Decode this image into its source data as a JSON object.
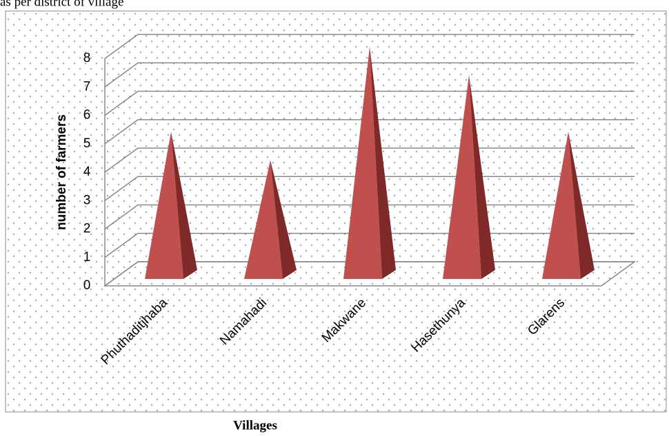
{
  "chart_data": {
    "type": "pyramid3d",
    "title": "as per district of village",
    "categories": [
      "Phuthaditjhaba",
      "Namahadi",
      "Makwane",
      "Hasethunya",
      "Glarens"
    ],
    "values": [
      5,
      4,
      8,
      7,
      5
    ],
    "color": "#c0504d",
    "ylim": [
      0,
      8
    ],
    "yticks": [
      0,
      1,
      2,
      3,
      4,
      5,
      6,
      7,
      8
    ],
    "grid": true,
    "ylabel": "number of farmers",
    "xlabel": "Villages"
  }
}
